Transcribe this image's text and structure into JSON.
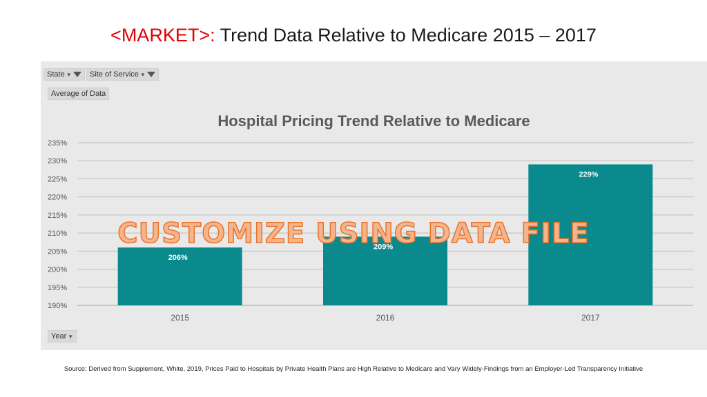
{
  "slide": {
    "title_market": "<MARKET>:",
    "title_rest": " Trend Data Relative to Medicare 2015 – 2017",
    "source": "Source: Derived from Supplement, White, 2019, Prices Paid to Hospitals by Private Health Plans are High Relative to Medicare and Vary Widely-Findings from an Employer-Led Transparency Initiative",
    "watermark": "CUSTOMIZE USING DATA FILE"
  },
  "pivot": {
    "state_label": "State",
    "site_label": "Site of Service",
    "value_label": "Average of Data",
    "axis_field_label": "Year"
  },
  "colors": {
    "bar": "#0a8a8c",
    "grid": "#bdbdbd",
    "panel": "#e9e9e9"
  },
  "chart_data": {
    "type": "bar",
    "title": "Hospital Pricing Trend Relative to Medicare",
    "categories": [
      "2015",
      "2016",
      "2017"
    ],
    "values": [
      206,
      209,
      229
    ],
    "data_labels": [
      "206%",
      "209%",
      "229%"
    ],
    "ylim": [
      190,
      235
    ],
    "yticks": [
      190,
      195,
      200,
      205,
      210,
      215,
      220,
      225,
      230,
      235
    ],
    "ytick_labels": [
      "190%",
      "195%",
      "200%",
      "205%",
      "210%",
      "215%",
      "220%",
      "225%",
      "230%",
      "235%"
    ],
    "xlabel": "",
    "ylabel": "",
    "grid": true
  }
}
